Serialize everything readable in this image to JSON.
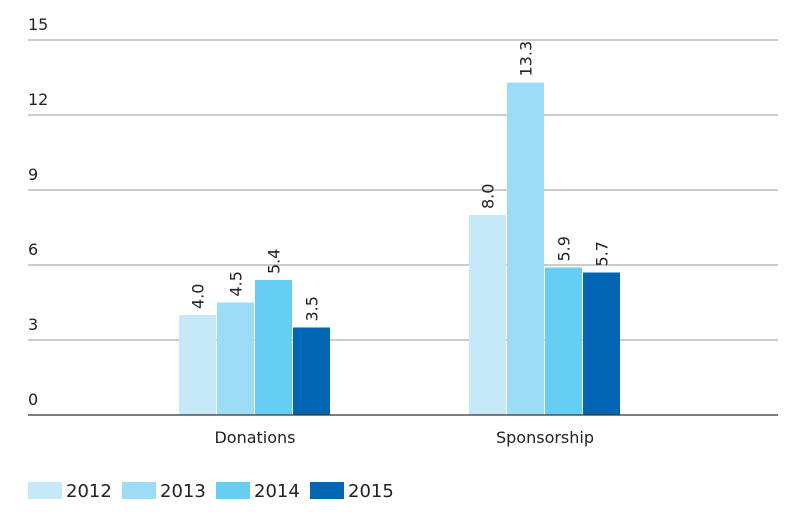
{
  "chart_data": {
    "type": "bar",
    "categories": [
      "Donations",
      "Sponsorship"
    ],
    "series": [
      {
        "name": "2012",
        "color": "#c6e9f9",
        "values": [
          4.0,
          8.0
        ],
        "value_labels": [
          "4.0",
          "8.0"
        ]
      },
      {
        "name": "2013",
        "color": "#9ddcf6",
        "values": [
          4.5,
          13.3
        ],
        "value_labels": [
          "4.5",
          "13.3"
        ]
      },
      {
        "name": "2014",
        "color": "#66cdf3",
        "values": [
          5.4,
          5.9
        ],
        "value_labels": [
          "5.4",
          "5.9"
        ]
      },
      {
        "name": "2015",
        "color": "#0066b3",
        "values": [
          3.5,
          5.7
        ],
        "value_labels": [
          "3.5",
          "5.7"
        ]
      }
    ],
    "ylim": [
      0,
      15
    ],
    "yticks": [
      0,
      3,
      6,
      9,
      12,
      15
    ],
    "grid": true
  }
}
